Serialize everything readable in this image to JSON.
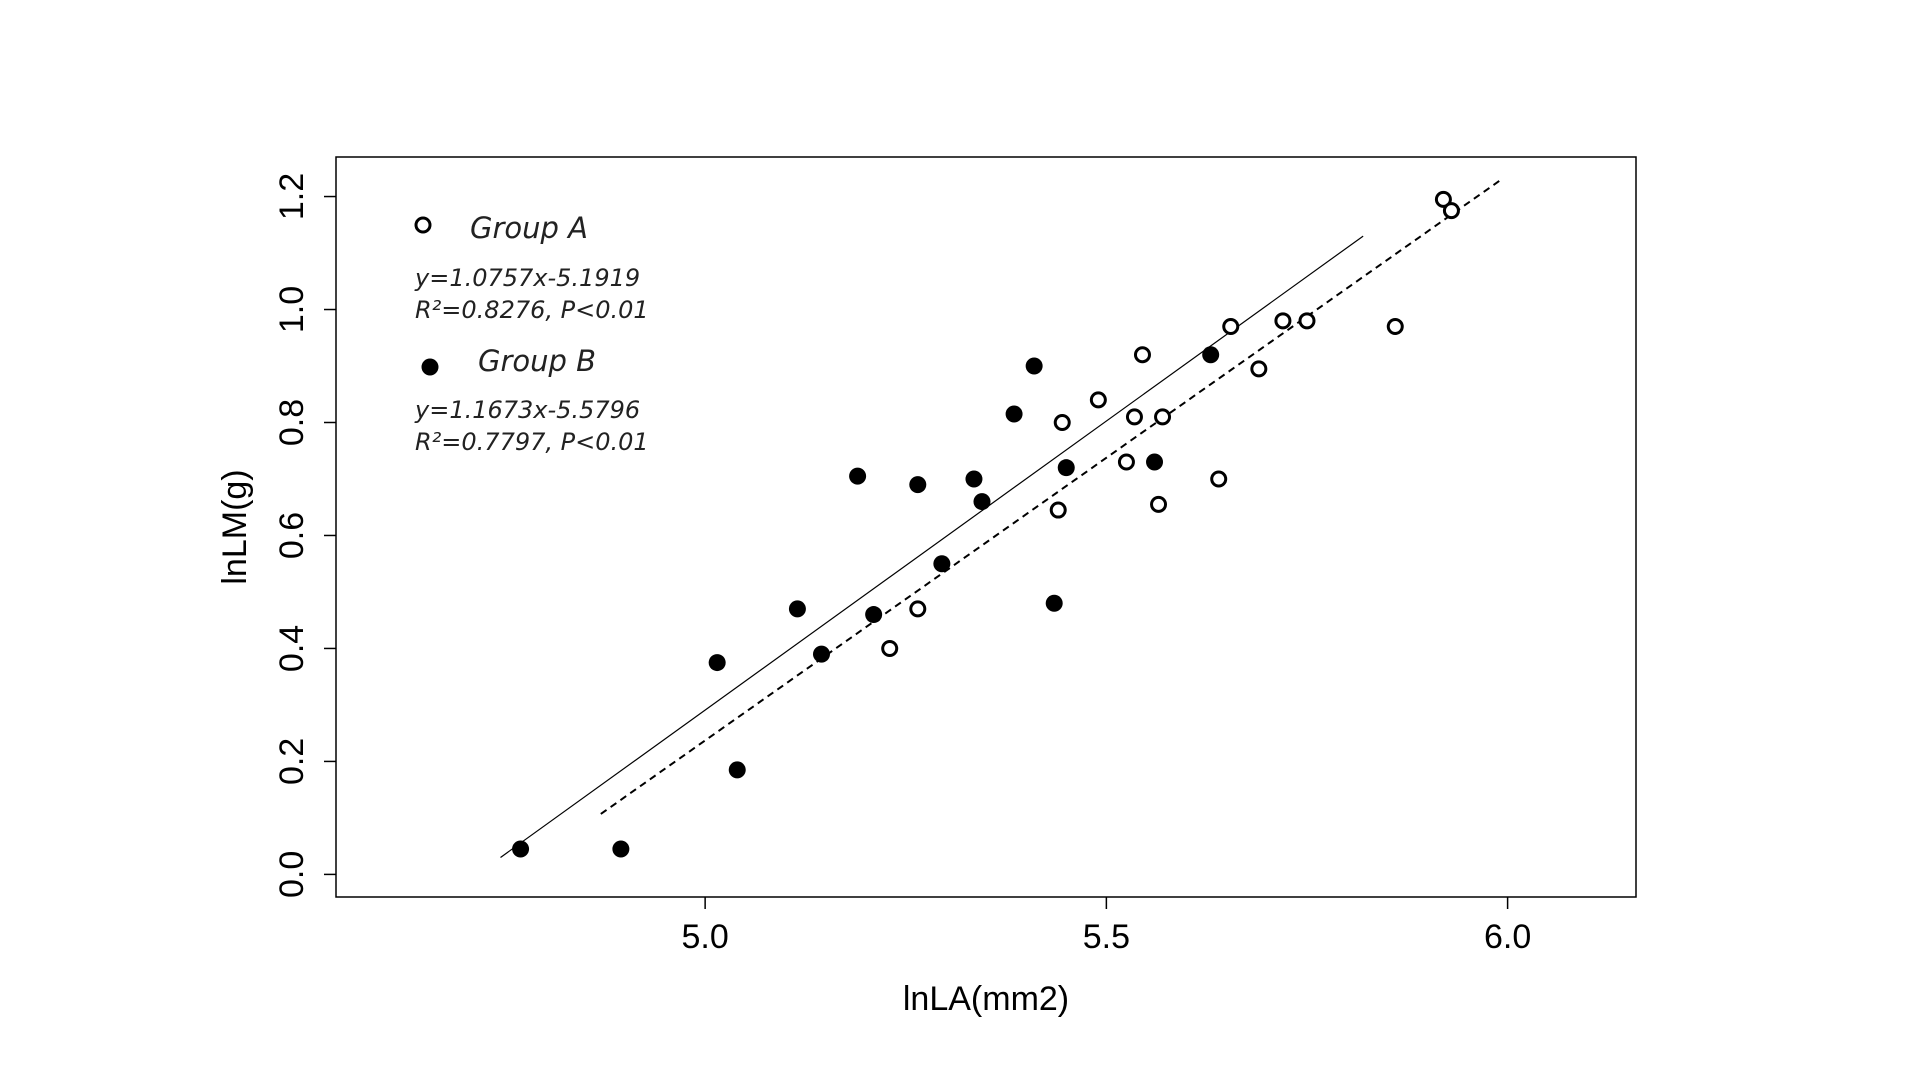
{
  "chart_data": {
    "type": "scatter",
    "xlabel": "lnLA(mm2)",
    "ylabel": "lnLM(g)",
    "xlim": [
      4.54,
      6.16
    ],
    "ylim": [
      -0.04,
      1.27
    ],
    "x_ticks": [
      "5.0",
      "5.5",
      "6.0"
    ],
    "x_tick_values": [
      5.0,
      5.5,
      6.0
    ],
    "y_ticks": [
      "0.0",
      "0.2",
      "0.4",
      "0.6",
      "0.8",
      "1.0",
      "1.2"
    ],
    "y_tick_values": [
      0.0,
      0.2,
      0.4,
      0.6,
      0.8,
      1.0,
      1.2
    ],
    "grid": false,
    "legend_position": "top-left",
    "series": [
      {
        "name": "Group A",
        "marker": "open-circle",
        "equation": "y=1.0757x-5.1919",
        "stats": "R²=0.8276, P<0.01",
        "fit_line": {
          "style": "dashed",
          "x": [
            4.87,
            5.99
          ],
          "y": [
            0.107,
            1.228
          ]
        },
        "points": [
          {
            "x": 5.23,
            "y": 0.4
          },
          {
            "x": 5.265,
            "y": 0.47
          },
          {
            "x": 5.44,
            "y": 0.645
          },
          {
            "x": 5.445,
            "y": 0.8
          },
          {
            "x": 5.49,
            "y": 0.84
          },
          {
            "x": 5.525,
            "y": 0.73
          },
          {
            "x": 5.535,
            "y": 0.81
          },
          {
            "x": 5.545,
            "y": 0.92
          },
          {
            "x": 5.565,
            "y": 0.655
          },
          {
            "x": 5.57,
            "y": 0.81
          },
          {
            "x": 5.64,
            "y": 0.7
          },
          {
            "x": 5.655,
            "y": 0.97
          },
          {
            "x": 5.69,
            "y": 0.895
          },
          {
            "x": 5.72,
            "y": 0.98
          },
          {
            "x": 5.75,
            "y": 0.98
          },
          {
            "x": 5.86,
            "y": 0.97
          },
          {
            "x": 5.92,
            "y": 1.195
          },
          {
            "x": 5.93,
            "y": 1.175
          }
        ]
      },
      {
        "name": "Group B",
        "marker": "filled-circle",
        "equation": "y=1.1673x-5.5796",
        "stats": "R²=0.7797, P<0.01",
        "fit_line": {
          "style": "solid",
          "x": [
            4.745,
            5.82
          ],
          "y": [
            0.03,
            1.13
          ]
        },
        "points": [
          {
            "x": 4.77,
            "y": 0.045
          },
          {
            "x": 4.895,
            "y": 0.045
          },
          {
            "x": 5.015,
            "y": 0.375
          },
          {
            "x": 5.04,
            "y": 0.185
          },
          {
            "x": 5.115,
            "y": 0.47
          },
          {
            "x": 5.145,
            "y": 0.39
          },
          {
            "x": 5.19,
            "y": 0.705
          },
          {
            "x": 5.21,
            "y": 0.46
          },
          {
            "x": 5.265,
            "y": 0.69
          },
          {
            "x": 5.295,
            "y": 0.55
          },
          {
            "x": 5.335,
            "y": 0.7
          },
          {
            "x": 5.345,
            "y": 0.66
          },
          {
            "x": 5.385,
            "y": 0.815
          },
          {
            "x": 5.41,
            "y": 0.9
          },
          {
            "x": 5.435,
            "y": 0.48
          },
          {
            "x": 5.45,
            "y": 0.72
          },
          {
            "x": 5.56,
            "y": 0.73
          },
          {
            "x": 5.63,
            "y": 0.92
          }
        ]
      }
    ]
  }
}
